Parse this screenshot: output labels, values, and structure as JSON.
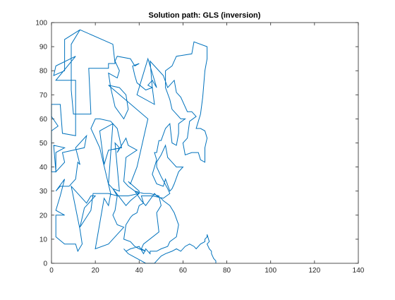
{
  "chart_data": {
    "type": "line",
    "title": "Solution path: GLS (inversion)",
    "xlabel": "",
    "ylabel": "",
    "xlim": [
      0,
      140
    ],
    "ylim": [
      0,
      100
    ],
    "x_ticks": [
      0,
      20,
      40,
      60,
      80,
      100,
      120,
      140
    ],
    "y_ticks": [
      0,
      10,
      20,
      30,
      40,
      50,
      60,
      70,
      80,
      90,
      100
    ],
    "grid": false,
    "line_color": "#0072bd",
    "series": [
      {
        "name": "",
        "points": [
          [
            13,
            97
          ],
          [
            28,
            91
          ],
          [
            29,
            83
          ],
          [
            26,
            83
          ],
          [
            26,
            81
          ],
          [
            17,
            81
          ],
          [
            18,
            62
          ],
          [
            10,
            62
          ],
          [
            9,
            72
          ],
          [
            9,
            91
          ],
          [
            13,
            97
          ],
          [
            6,
            93
          ],
          [
            6,
            80
          ],
          [
            1,
            78
          ],
          [
            2,
            82
          ],
          [
            11,
            86
          ],
          [
            2,
            76
          ],
          [
            11,
            76
          ],
          [
            11,
            53
          ],
          [
            5,
            54
          ],
          [
            4,
            66
          ],
          [
            0,
            66
          ],
          [
            0,
            61
          ],
          [
            3,
            57
          ],
          [
            0,
            55
          ],
          [
            0,
            38
          ],
          [
            2,
            38
          ],
          [
            2,
            46
          ],
          [
            6,
            48
          ],
          [
            1,
            49
          ],
          [
            2,
            38
          ],
          [
            6,
            42
          ],
          [
            5,
            46
          ],
          [
            15,
            48
          ],
          [
            16,
            53
          ],
          [
            11,
            48
          ],
          [
            13,
            41
          ],
          [
            12,
            42
          ],
          [
            11,
            35
          ],
          [
            8,
            32
          ],
          [
            4,
            32
          ],
          [
            2,
            30
          ],
          [
            6,
            35
          ],
          [
            4,
            28
          ],
          [
            2,
            22
          ],
          [
            6,
            20
          ],
          [
            2,
            20
          ],
          [
            2,
            11
          ],
          [
            6,
            8
          ],
          [
            11,
            8
          ],
          [
            12,
            5
          ],
          [
            14,
            8
          ],
          [
            13,
            14
          ],
          [
            9,
            32
          ],
          [
            16,
            25
          ],
          [
            18,
            28
          ],
          [
            20,
            28
          ],
          [
            15,
            23
          ],
          [
            13,
            15
          ],
          [
            18,
            22
          ],
          [
            19,
            29
          ],
          [
            26,
            29
          ],
          [
            30,
            28
          ],
          [
            29,
            22
          ],
          [
            28,
            20
          ],
          [
            30,
            16
          ],
          [
            33,
            15
          ],
          [
            30,
            12
          ],
          [
            27,
            9
          ],
          [
            26,
            8
          ],
          [
            20,
            6
          ],
          [
            24,
            27
          ],
          [
            26,
            24
          ],
          [
            27,
            29
          ],
          [
            22,
            48
          ],
          [
            18,
            56
          ],
          [
            20,
            60
          ],
          [
            22,
            60
          ],
          [
            27,
            59
          ],
          [
            30,
            56
          ],
          [
            32,
            48
          ],
          [
            26,
            47
          ],
          [
            24,
            41
          ],
          [
            22,
            55
          ],
          [
            28,
            58
          ],
          [
            26,
            33
          ],
          [
            28,
            31
          ],
          [
            31,
            30
          ],
          [
            29,
            50
          ],
          [
            31,
            48
          ],
          [
            30,
            46
          ],
          [
            34,
            52
          ],
          [
            35,
            49
          ],
          [
            39,
            47
          ],
          [
            34,
            44
          ],
          [
            33,
            34
          ],
          [
            35,
            32
          ],
          [
            38,
            30
          ],
          [
            40,
            29
          ],
          [
            36,
            26
          ],
          [
            34,
            24
          ],
          [
            28,
            31
          ],
          [
            30,
            28
          ],
          [
            35,
            28
          ],
          [
            40,
            29
          ],
          [
            40,
            30
          ],
          [
            35,
            34
          ],
          [
            36,
            33
          ],
          [
            39,
            40
          ],
          [
            44,
            60
          ],
          [
            26,
            74
          ],
          [
            31,
            73
          ],
          [
            34,
            70
          ],
          [
            35,
            64
          ],
          [
            33,
            60
          ],
          [
            29,
            65
          ],
          [
            27,
            73
          ],
          [
            26,
            79
          ],
          [
            30,
            77
          ],
          [
            31,
            80
          ],
          [
            29,
            84
          ],
          [
            30,
            86
          ],
          [
            36,
            85
          ],
          [
            38,
            82
          ],
          [
            40,
            83
          ],
          [
            37,
            82
          ],
          [
            38,
            78
          ],
          [
            39,
            75
          ],
          [
            43,
            72
          ],
          [
            46,
            73
          ],
          [
            44,
            74
          ],
          [
            46,
            76
          ],
          [
            48,
            73
          ],
          [
            46,
            79
          ],
          [
            44,
            85
          ],
          [
            41,
            76
          ],
          [
            39,
            70
          ],
          [
            47,
            66
          ],
          [
            46,
            73
          ],
          [
            45,
            84
          ],
          [
            51,
            78
          ],
          [
            53,
            73
          ],
          [
            56,
            76
          ],
          [
            57,
            71
          ],
          [
            59,
            69
          ],
          [
            62,
            63
          ],
          [
            64,
            63
          ],
          [
            66,
            61
          ],
          [
            63,
            59
          ],
          [
            62,
            52
          ],
          [
            60,
            50
          ],
          [
            61,
            45
          ],
          [
            64,
            46
          ],
          [
            67,
            46
          ],
          [
            68,
            43
          ],
          [
            70,
            42
          ],
          [
            70,
            48
          ],
          [
            71,
            52
          ],
          [
            70,
            55
          ],
          [
            68,
            56
          ],
          [
            66,
            56
          ],
          [
            67,
            59
          ],
          [
            68,
            62
          ],
          [
            69,
            69
          ],
          [
            70,
            80
          ],
          [
            71,
            85
          ],
          [
            71,
            90
          ],
          [
            65,
            92
          ],
          [
            64,
            87
          ],
          [
            57,
            86
          ],
          [
            55,
            82
          ],
          [
            52,
            80
          ],
          [
            52,
            77
          ],
          [
            52,
            73
          ],
          [
            54,
            68
          ],
          [
            55,
            64
          ],
          [
            57,
            62
          ],
          [
            59,
            60
          ],
          [
            61,
            60
          ],
          [
            58,
            58
          ],
          [
            58,
            54
          ],
          [
            57,
            49
          ],
          [
            55,
            50
          ],
          [
            54,
            58
          ],
          [
            52,
            56
          ],
          [
            50,
            51
          ],
          [
            49,
            51
          ],
          [
            48,
            46
          ],
          [
            47,
            46
          ],
          [
            48,
            43
          ],
          [
            47,
            40
          ],
          [
            46,
            37
          ],
          [
            48,
            33
          ],
          [
            51,
            32
          ],
          [
            52,
            35
          ],
          [
            54,
            30
          ],
          [
            55,
            31
          ],
          [
            56,
            33
          ],
          [
            58,
            38
          ],
          [
            60,
            40
          ],
          [
            57,
            40
          ],
          [
            55,
            42
          ],
          [
            53,
            44
          ],
          [
            52,
            49
          ],
          [
            50,
            45
          ],
          [
            48,
            42
          ],
          [
            48,
            40
          ],
          [
            50,
            36
          ],
          [
            53,
            31
          ],
          [
            54,
            29
          ],
          [
            51,
            27
          ],
          [
            46,
            28
          ],
          [
            41,
            28
          ],
          [
            42,
            25
          ],
          [
            40,
            24
          ],
          [
            39,
            21
          ],
          [
            37,
            20
          ],
          [
            36,
            19
          ],
          [
            34,
            16
          ],
          [
            33,
            10
          ],
          [
            36,
            9
          ],
          [
            38,
            7
          ],
          [
            40,
            6
          ],
          [
            43,
            5
          ],
          [
            41,
            6
          ],
          [
            42,
            8
          ],
          [
            49,
            13
          ],
          [
            48,
            21
          ],
          [
            50,
            24
          ],
          [
            49,
            28
          ],
          [
            45,
            29
          ],
          [
            42,
            29
          ],
          [
            38,
            30
          ],
          [
            41,
            26
          ],
          [
            43,
            24
          ],
          [
            47,
            29
          ],
          [
            48,
            28
          ],
          [
            50,
            27
          ],
          [
            51,
            26
          ],
          [
            54,
            24
          ],
          [
            56,
            21
          ],
          [
            58,
            16
          ],
          [
            57,
            11
          ],
          [
            54,
            9
          ],
          [
            53,
            7
          ],
          [
            50,
            6
          ],
          [
            48,
            5
          ],
          [
            45,
            5
          ],
          [
            45,
            4
          ],
          [
            43,
            6
          ],
          [
            42,
            4
          ],
          [
            40,
            7
          ],
          [
            36,
            6
          ],
          [
            34,
            5
          ],
          [
            33,
            6
          ],
          [
            35,
            4
          ],
          [
            37,
            3
          ],
          [
            39,
            2
          ],
          [
            41,
            1
          ],
          [
            43,
            0
          ],
          [
            47,
            0
          ],
          [
            48,
            1
          ],
          [
            50,
            3
          ],
          [
            52,
            4
          ],
          [
            55,
            5
          ],
          [
            57,
            6
          ],
          [
            59,
            5
          ],
          [
            61,
            7
          ],
          [
            63,
            8
          ],
          [
            65,
            7
          ],
          [
            66,
            6
          ],
          [
            68,
            8
          ],
          [
            70,
            9
          ],
          [
            70,
            10
          ],
          [
            71,
            11
          ],
          [
            71,
            12
          ],
          [
            72,
            9
          ],
          [
            71,
            8
          ],
          [
            72,
            6
          ],
          [
            73,
            5
          ],
          [
            73,
            4
          ],
          [
            74,
            2
          ],
          [
            75,
            1
          ],
          [
            75,
            0
          ]
        ]
      }
    ]
  }
}
